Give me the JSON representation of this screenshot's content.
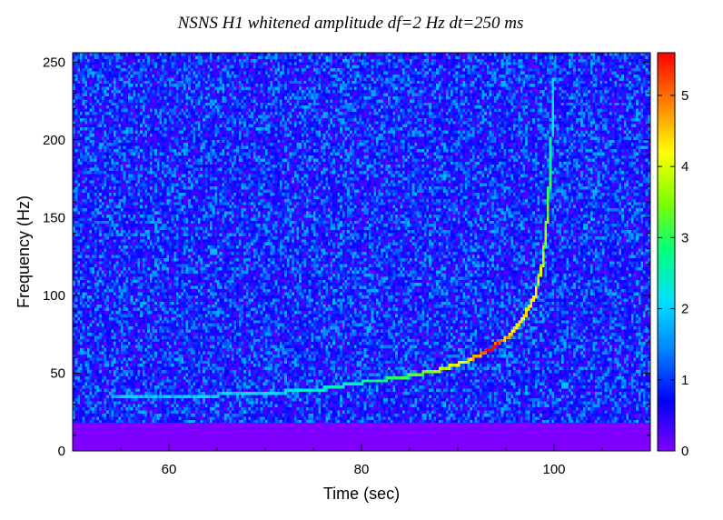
{
  "chart_data": {
    "type": "heatmap",
    "title": "NSNS H1 whitened amplitude df=2 Hz dt=250 ms",
    "xlabel": "Time (sec)",
    "ylabel": "Frequency (Hz)",
    "xlim": [
      50,
      110
    ],
    "ylim": [
      0,
      256
    ],
    "x_ticks": [
      60,
      80,
      100
    ],
    "y_ticks": [
      0,
      50,
      100,
      150,
      200,
      250
    ],
    "colorbar": {
      "range": [
        0,
        5.6
      ],
      "ticks": [
        0,
        1,
        2,
        3,
        4,
        5
      ],
      "colormap": [
        "#8000ff",
        "#0000ff",
        "#0080ff",
        "#00e0ff",
        "#00ff80",
        "#80ff00",
        "#ffff00",
        "#ff8000",
        "#ff0000"
      ]
    },
    "background": {
      "typical_amplitude": 1.0,
      "low_frequency_cutoff_hz": 18,
      "below_cutoff_value": 0
    },
    "chirp_track": [
      {
        "t": 54.0,
        "f": 36,
        "amp": 1.8
      },
      {
        "t": 60.0,
        "f": 35,
        "amp": 1.9
      },
      {
        "t": 70.0,
        "f": 37,
        "amp": 2.0
      },
      {
        "t": 76.0,
        "f": 40,
        "amp": 2.2
      },
      {
        "t": 80.0,
        "f": 44,
        "amp": 2.4
      },
      {
        "t": 84.0,
        "f": 47,
        "amp": 2.8
      },
      {
        "t": 88.0,
        "f": 52,
        "amp": 3.4
      },
      {
        "t": 91.0,
        "f": 58,
        "amp": 3.8
      },
      {
        "t": 93.5,
        "f": 66,
        "amp": 5.2
      },
      {
        "t": 95.5,
        "f": 75,
        "amp": 4.0
      },
      {
        "t": 97.0,
        "f": 88,
        "amp": 3.8
      },
      {
        "t": 98.0,
        "f": 100,
        "amp": 3.8
      },
      {
        "t": 98.8,
        "f": 120,
        "amp": 3.6
      },
      {
        "t": 99.3,
        "f": 150,
        "amp": 3.2
      },
      {
        "t": 99.6,
        "f": 180,
        "amp": 2.6
      },
      {
        "t": 99.8,
        "f": 210,
        "amp": 2.2
      },
      {
        "t": 100.0,
        "f": 240,
        "amp": 1.8
      }
    ]
  }
}
